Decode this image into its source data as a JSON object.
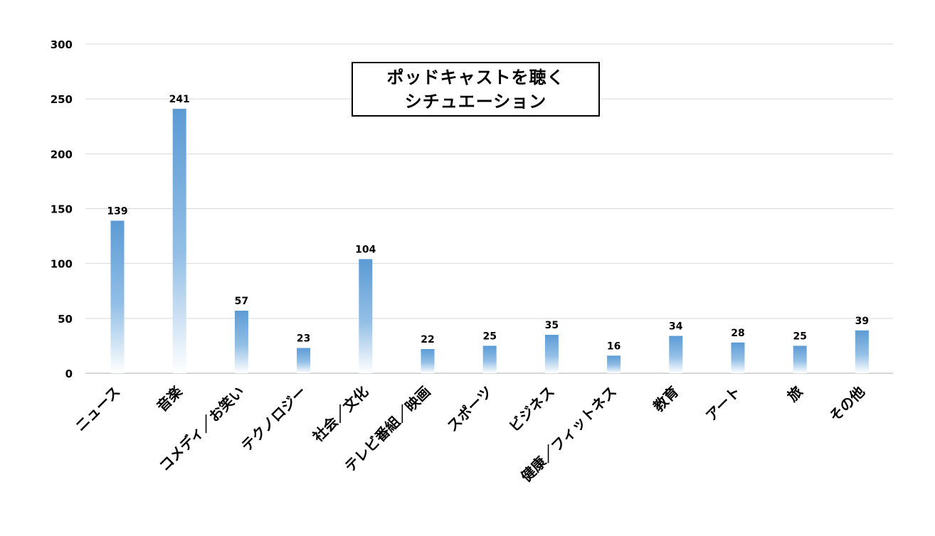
{
  "chart_data": {
    "type": "bar",
    "title_lines": [
      "ポッドキャストを聴く",
      "シチュエーション"
    ],
    "categories": [
      "ニュース",
      "音楽",
      "コメディ／お笑い",
      "テクノロジー",
      "社会／文化",
      "テレビ番組／映画",
      "スポーツ",
      "ビジネス",
      "健康／フィットネス",
      "教育",
      "アート",
      "旅",
      "その他"
    ],
    "values": [
      139,
      241,
      57,
      23,
      104,
      22,
      25,
      35,
      16,
      34,
      28,
      25,
      39
    ],
    "ylim": [
      0,
      300
    ],
    "yticks": [
      0,
      50,
      100,
      150,
      200,
      250,
      300
    ],
    "grid": true,
    "data_labels": true,
    "xlabel": "",
    "ylabel": "",
    "colors": {
      "bar_top": "#5B9BD5",
      "bar_bottom": "#FFFFFF",
      "grid": "#D9D9D9",
      "axis": "#BFBFBF",
      "text": "#000000"
    }
  }
}
